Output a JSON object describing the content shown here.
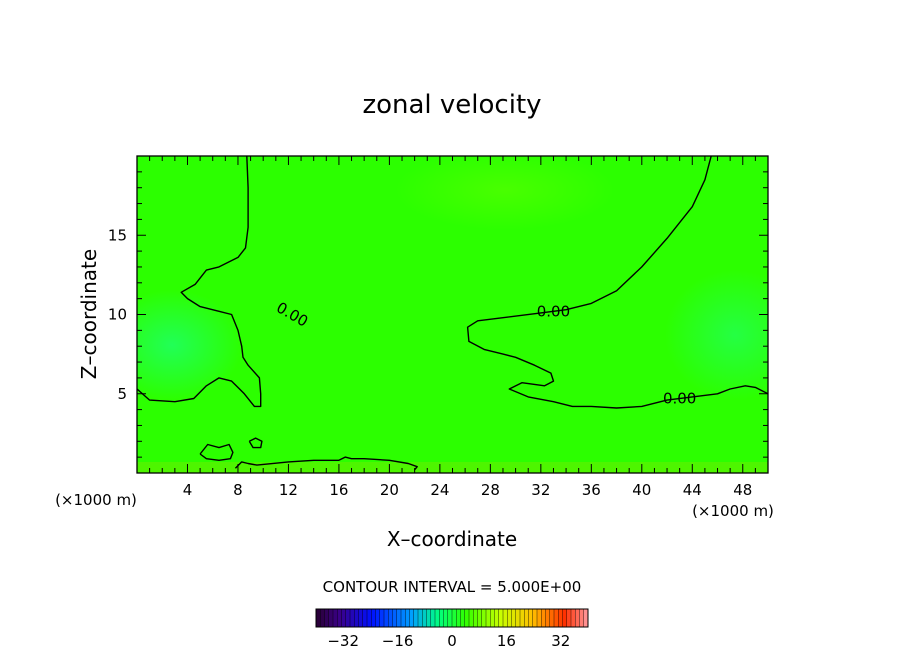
{
  "chart_data": {
    "type": "heatmap",
    "title": "zonal velocity",
    "xlabel": "X–coordinate",
    "ylabel": "Z–coordinate",
    "x_unit": "(×1000 m)",
    "x_unit_right": "(×1000 m)",
    "xlim": [
      0,
      50
    ],
    "ylim": [
      0,
      20
    ],
    "xticks": [
      4,
      8,
      12,
      16,
      20,
      24,
      28,
      32,
      36,
      40,
      44,
      48
    ],
    "xtick_labels": [
      "4",
      "8",
      "12",
      "16",
      "20",
      "24",
      "28",
      "32",
      "36",
      "40",
      "44",
      "48"
    ],
    "yticks": [
      5,
      10,
      15
    ],
    "ytick_labels": [
      "5",
      "10",
      "15"
    ],
    "background_color": "#2cff00",
    "contour_interval_text": "CONTOUR INTERVAL = 5.000E+00",
    "contour_labels": [
      {
        "text": "0.00",
        "x": 12.3,
        "y": 10.0
      },
      {
        "text": "0.00",
        "x": 33.0,
        "y": 10.2
      },
      {
        "text": "0.00",
        "x": 43.0,
        "y": 4.7
      }
    ],
    "contours": [
      {
        "name": "upper-left",
        "points": [
          [
            8.7,
            20
          ],
          [
            8.8,
            18
          ],
          [
            8.8,
            15.5
          ],
          [
            8.6,
            14.2
          ],
          [
            8.0,
            13.6
          ],
          [
            6.5,
            13.0
          ],
          [
            5.5,
            12.8
          ],
          [
            4.6,
            11.9
          ],
          [
            3.5,
            11.4
          ],
          [
            4.0,
            11.0
          ],
          [
            5.0,
            10.5
          ],
          [
            6.5,
            10.2
          ],
          [
            7.5,
            10.0
          ],
          [
            8.0,
            9.0
          ],
          [
            8.3,
            8.0
          ],
          [
            8.4,
            7.3
          ],
          [
            8.8,
            6.8
          ],
          [
            9.7,
            6.0
          ],
          [
            9.8,
            5.0
          ],
          [
            9.8,
            4.2
          ],
          [
            9.3,
            4.2
          ],
          [
            8.5,
            5.0
          ],
          [
            7.5,
            5.8
          ],
          [
            6.5,
            6.0
          ],
          [
            5.5,
            5.5
          ],
          [
            4.5,
            4.7
          ],
          [
            3.0,
            4.5
          ],
          [
            1.0,
            4.6
          ],
          [
            0,
            5.3
          ]
        ]
      },
      {
        "name": "upper-right",
        "points": [
          [
            45.5,
            20
          ],
          [
            45.0,
            18.5
          ],
          [
            44.0,
            16.8
          ],
          [
            42.0,
            14.8
          ],
          [
            40.0,
            13.0
          ],
          [
            38.0,
            11.5
          ],
          [
            36.0,
            10.7
          ],
          [
            34.0,
            10.3
          ],
          [
            32.0,
            10.1
          ],
          [
            29.0,
            9.8
          ],
          [
            27.0,
            9.6
          ],
          [
            26.2,
            9.2
          ],
          [
            26.3,
            8.3
          ],
          [
            27.5,
            7.8
          ],
          [
            29.0,
            7.5
          ],
          [
            30.0,
            7.3
          ],
          [
            31.5,
            6.8
          ],
          [
            32.8,
            6.3
          ],
          [
            33.0,
            5.8
          ],
          [
            32.3,
            5.5
          ],
          [
            30.5,
            5.7
          ],
          [
            29.5,
            5.3
          ],
          [
            31.0,
            4.8
          ],
          [
            33.0,
            4.5
          ],
          [
            34.5,
            4.2
          ],
          [
            36.0,
            4.2
          ],
          [
            38.0,
            4.1
          ],
          [
            40.0,
            4.2
          ],
          [
            42.0,
            4.6
          ],
          [
            44.0,
            4.8
          ],
          [
            46.0,
            5.0
          ],
          [
            47.0,
            5.3
          ],
          [
            48.2,
            5.5
          ],
          [
            49.0,
            5.4
          ],
          [
            50,
            5.0
          ]
        ]
      },
      {
        "name": "lower-left-blob",
        "points": [
          [
            5.0,
            1.2
          ],
          [
            5.6,
            1.8
          ],
          [
            6.5,
            1.6
          ],
          [
            7.3,
            1.8
          ],
          [
            7.6,
            1.3
          ],
          [
            7.4,
            0.9
          ],
          [
            6.5,
            0.8
          ],
          [
            5.5,
            0.9
          ],
          [
            5.0,
            1.2
          ]
        ]
      },
      {
        "name": "small-blob",
        "points": [
          [
            8.9,
            2.0
          ],
          [
            9.4,
            2.2
          ],
          [
            9.9,
            2.0
          ],
          [
            9.8,
            1.6
          ],
          [
            9.2,
            1.6
          ],
          [
            8.9,
            2.0
          ]
        ]
      },
      {
        "name": "near-surface",
        "points": [
          [
            7.8,
            0.3
          ],
          [
            8.3,
            0.7
          ],
          [
            8.8,
            0.6
          ],
          [
            9.5,
            0.5
          ],
          [
            12.0,
            0.7
          ],
          [
            14.0,
            0.8
          ],
          [
            16.0,
            0.8
          ],
          [
            16.5,
            1.0
          ],
          [
            17.0,
            0.9
          ],
          [
            18.0,
            0.9
          ],
          [
            20.0,
            0.8
          ],
          [
            21.5,
            0.6
          ],
          [
            22.2,
            0.4
          ],
          [
            22.0,
            0.2
          ]
        ]
      }
    ],
    "colorbar": {
      "ticks": [
        -32,
        -16,
        0,
        16,
        32
      ],
      "tick_labels": [
        "−32",
        "−16",
        "0",
        "16",
        "32"
      ],
      "range": [
        -40,
        40
      ],
      "n_bins": 64
    }
  }
}
